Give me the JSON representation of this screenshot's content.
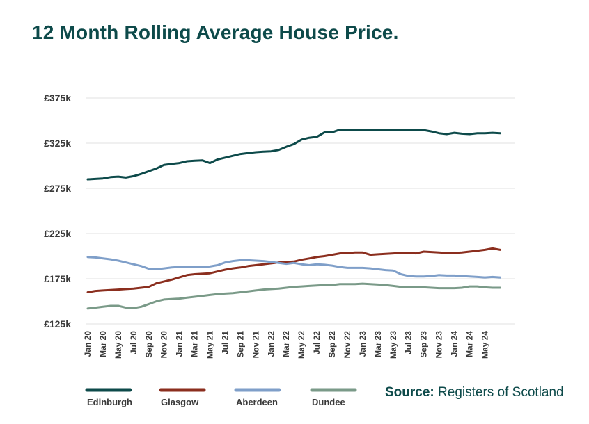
{
  "chart_data": {
    "type": "line",
    "title": "12 Month Rolling Average House Price.",
    "xlabel": "",
    "ylabel": "",
    "ylim": [
      125,
      375
    ],
    "yticks": [
      125,
      175,
      225,
      275,
      325,
      375
    ],
    "ytick_labels": [
      "£125k",
      "£175k",
      "£225k",
      "£275k",
      "£325k",
      "£375k"
    ],
    "grid": true,
    "legend_position": "bottom-left",
    "x": [
      "Jan 20",
      "Feb 20",
      "Mar 20",
      "Apr 20",
      "May 20",
      "Jun 20",
      "Jul 20",
      "Aug 20",
      "Sep 20",
      "Oct 20",
      "Nov 20",
      "Dec 20",
      "Jan 21",
      "Feb 21",
      "Mar 21",
      "Apr 21",
      "May 21",
      "Jun 21",
      "Jul 21",
      "Aug 21",
      "Sep 21",
      "Oct 21",
      "Nov 21",
      "Dec 21",
      "Jan 22",
      "Feb 22",
      "Mar 22",
      "Apr 22",
      "May 22",
      "Jun 22",
      "Jul 22",
      "Aug 22",
      "Sep 22",
      "Oct 22",
      "Nov 22",
      "Dec 22",
      "Jan 23",
      "Feb 23",
      "Mar 23",
      "Apr 23",
      "May 23",
      "Jun 23",
      "Jul 23",
      "Aug 23",
      "Sep 23",
      "Oct 23",
      "Nov 23",
      "Dec 23",
      "Jan 24",
      "Feb 24",
      "Mar 24",
      "Apr 24",
      "May 24",
      "Jun 24",
      "Jul 24"
    ],
    "xtick_labels": [
      "Jan 20",
      "Mar 20",
      "May 20",
      "Jul 20",
      "Sep 20",
      "Nov 20",
      "Jan 21",
      "Mar 21",
      "May 21",
      "Jul 21",
      "Sep 21",
      "Nov 21",
      "Jan 22",
      "Mar 22",
      "May 22",
      "Jul 22",
      "Sep 22",
      "Nov 22",
      "Jan 23",
      "Mar 23",
      "May 23",
      "Jul 23",
      "Sep 23",
      "Nov 23",
      "Jan 24",
      "Mar 24",
      "May 24"
    ],
    "series": [
      {
        "name": "Edinburgh",
        "color": "#0d4a4a",
        "values": [
          285,
          285.5,
          286,
          287.5,
          288,
          287,
          288.5,
          291,
          294,
          297,
          301,
          302,
          303,
          305,
          305.5,
          306,
          303,
          307,
          309,
          311,
          313,
          314,
          315,
          315.5,
          316,
          317.5,
          321,
          324,
          329,
          331,
          332,
          337,
          337,
          340,
          340,
          340,
          340,
          339.5,
          339.5,
          339.5,
          339.5,
          339.5,
          339.5,
          339.5,
          339.5,
          338,
          336,
          335,
          336.5,
          335.5,
          335,
          336,
          336,
          336.5,
          336
        ]
      },
      {
        "name": "Glasgow",
        "color": "#8b2e1e",
        "values": [
          160,
          161.5,
          162,
          162.5,
          163,
          163.5,
          164,
          165,
          166,
          170,
          172,
          174,
          176.5,
          179,
          180,
          180.5,
          181,
          183,
          185,
          186.5,
          187.5,
          189,
          190,
          191,
          192,
          193,
          193.5,
          194,
          196,
          197.5,
          199,
          200,
          201.5,
          203,
          203.5,
          204,
          204,
          201.5,
          202,
          202.5,
          203,
          203.5,
          203.5,
          203,
          205,
          204.5,
          204,
          203.5,
          203.5,
          204,
          205,
          206,
          207,
          208.5,
          207
        ]
      },
      {
        "name": "Aberdeen",
        "color": "#7f9fc9",
        "values": [
          199,
          198.5,
          197.5,
          196.5,
          195,
          193,
          191,
          189,
          186,
          185.5,
          186.5,
          187.5,
          188,
          188,
          188,
          188,
          188.5,
          190,
          193,
          194.5,
          195.5,
          195.5,
          195,
          194.5,
          193.5,
          192.5,
          191.5,
          192.5,
          191,
          190,
          191,
          190.5,
          189.5,
          188,
          187,
          187,
          187,
          186.5,
          185.5,
          184.5,
          184,
          180,
          178,
          177.5,
          177.5,
          178,
          179,
          178.5,
          178.5,
          178,
          177.5,
          177,
          176.5,
          177,
          176.5
        ]
      },
      {
        "name": "Dundee",
        "color": "#7a9a88",
        "values": [
          142,
          143,
          144,
          145,
          145,
          143,
          142.5,
          144,
          147,
          150,
          152,
          152.5,
          153,
          154,
          155,
          156,
          157,
          158,
          158.5,
          159,
          160,
          161,
          162,
          163,
          163.5,
          164,
          165,
          166,
          166.5,
          167,
          167.5,
          168,
          168,
          169,
          169,
          169,
          169.5,
          169,
          168.5,
          168,
          167,
          166,
          165.5,
          165.5,
          165.5,
          165,
          164.5,
          164.5,
          164.5,
          165,
          166.5,
          166.5,
          165.5,
          165,
          165
        ]
      }
    ]
  },
  "source": {
    "label": "Source:",
    "text": "Registers of Scotland"
  }
}
